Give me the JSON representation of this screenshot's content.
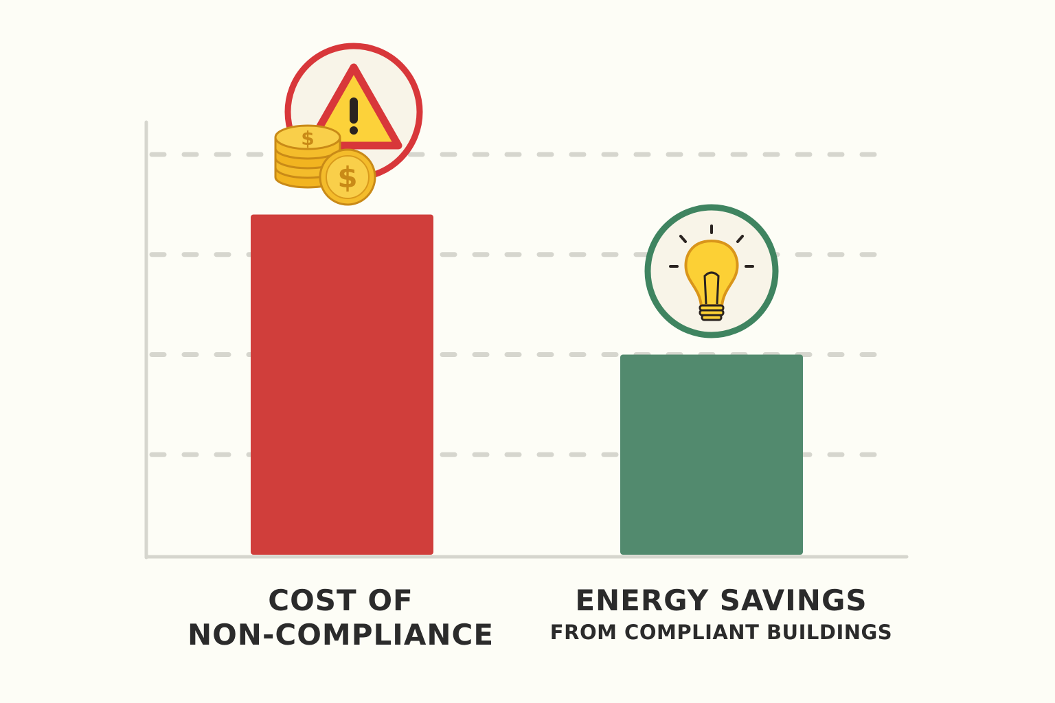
{
  "chart_data": {
    "type": "bar",
    "categories": [
      {
        "label_line1": "COST OF",
        "label_line2": "NON-COMPLIANCE"
      },
      {
        "label_line1": "ENERGY SAVINGS",
        "label_line2": "FROM COMPLIANT BUILDINGS"
      }
    ],
    "values": [
      85,
      50
    ],
    "ylim": [
      0,
      100
    ],
    "y_gridlines": [
      25,
      50,
      75,
      100
    ],
    "grid": true,
    "title": "",
    "xlabel": "",
    "ylabel": "",
    "bar_colors": [
      "#d03e3b",
      "#528a6e"
    ],
    "icons": [
      "warning-coins-icon",
      "lightbulb-icon"
    ]
  },
  "colors": {
    "background": "#fdfdf6",
    "axis": "#d6d6ce",
    "grid": "#d6d6ce",
    "label": "#2b2b2b",
    "warning_red": "#d8373a",
    "coin_gold": "#f4b723",
    "bulb_yellow": "#fcd035",
    "badge_green": "#3f8460"
  }
}
